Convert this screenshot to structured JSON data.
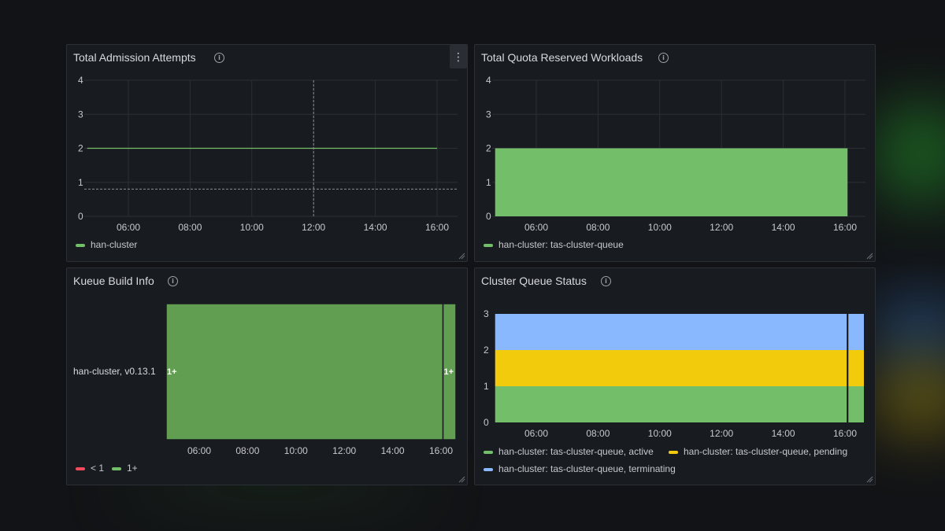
{
  "colors": {
    "background": "#121316",
    "panel": "#181b1f",
    "grid": "#2c2f35",
    "axis_text": "#c7c8d0",
    "green": "#73bf69",
    "green_dark": "#629e51",
    "yellow": "#f2cc0c",
    "blue": "#8ab8ff",
    "red": "#f2495c"
  },
  "panels": {
    "admission": {
      "title": "Total Admission Attempts",
      "menu_icon": "kebab-menu-icon",
      "legend": [
        {
          "label": "han-cluster",
          "color": "#73bf69"
        }
      ],
      "chart_data": {
        "type": "line",
        "title": "Total Admission Attempts",
        "x_ticks": [
          "06:00",
          "08:00",
          "10:00",
          "12:00",
          "14:00",
          "16:00"
        ],
        "y_ticks": [
          "0",
          "1",
          "2",
          "3",
          "4"
        ],
        "ylim": [
          0,
          4
        ],
        "series": [
          {
            "name": "han-cluster",
            "x": [
              "04:40",
              "16:00"
            ],
            "values": [
              2,
              2
            ]
          }
        ],
        "annotations": {
          "hover_crosshair_x": "12:00",
          "hover_crosshair_y": 0.8
        },
        "grid": true
      }
    },
    "quota": {
      "title": "Total Quota Reserved Workloads",
      "legend": [
        {
          "label": "han-cluster: tas-cluster-queue",
          "color": "#73bf69"
        }
      ],
      "chart_data": {
        "type": "area",
        "title": "Total Quota Reserved Workloads",
        "x_ticks": [
          "06:00",
          "08:00",
          "10:00",
          "12:00",
          "14:00",
          "16:00"
        ],
        "y_ticks": [
          "0",
          "1",
          "2",
          "3",
          "4"
        ],
        "ylim": [
          0,
          4
        ],
        "series": [
          {
            "name": "han-cluster: tas-cluster-queue",
            "x": [
              "04:40",
              "16:05"
            ],
            "values": [
              2,
              2
            ]
          }
        ],
        "grid": true
      }
    },
    "build": {
      "title": "Kueue Build Info",
      "row_label": "han-cluster, v0.13.1",
      "cell_labels": [
        "1+",
        "1+"
      ],
      "legend": [
        {
          "label": "< 1",
          "color": "#f2495c"
        },
        {
          "label": "1+",
          "color": "#73bf69"
        }
      ],
      "chart_data": {
        "type": "heatmap",
        "title": "Kueue Build Info",
        "x_ticks": [
          "06:00",
          "08:00",
          "10:00",
          "12:00",
          "14:00",
          "16:00"
        ],
        "rows": [
          "han-cluster, v0.13.1"
        ],
        "segments": [
          {
            "x_start": "04:30",
            "x_end": "16:05",
            "value": "1+"
          },
          {
            "x_start": "16:05",
            "x_end": "16:35",
            "value": "1+"
          }
        ]
      }
    },
    "status": {
      "title": "Cluster Queue Status",
      "legend": [
        {
          "label": "han-cluster: tas-cluster-queue, active",
          "color": "#73bf69"
        },
        {
          "label": "han-cluster: tas-cluster-queue, pending",
          "color": "#f2cc0c"
        },
        {
          "label": "han-cluster: tas-cluster-queue, terminating",
          "color": "#8ab8ff"
        }
      ],
      "chart_data": {
        "type": "area",
        "stacked": true,
        "title": "Cluster Queue Status",
        "x_ticks": [
          "06:00",
          "08:00",
          "10:00",
          "12:00",
          "14:00",
          "16:00"
        ],
        "y_ticks": [
          "0",
          "1",
          "2",
          "3"
        ],
        "ylim": [
          0,
          3
        ],
        "x": [
          "04:40",
          "16:35"
        ],
        "series": [
          {
            "name": "han-cluster: tas-cluster-queue, active",
            "values": [
              1,
              1
            ]
          },
          {
            "name": "han-cluster: tas-cluster-queue, pending",
            "values": [
              1,
              1
            ]
          },
          {
            "name": "han-cluster: tas-cluster-queue, terminating",
            "values": [
              1,
              1
            ]
          }
        ],
        "annotations": {
          "vertical_marker_x": "16:05"
        },
        "grid": true
      }
    }
  }
}
